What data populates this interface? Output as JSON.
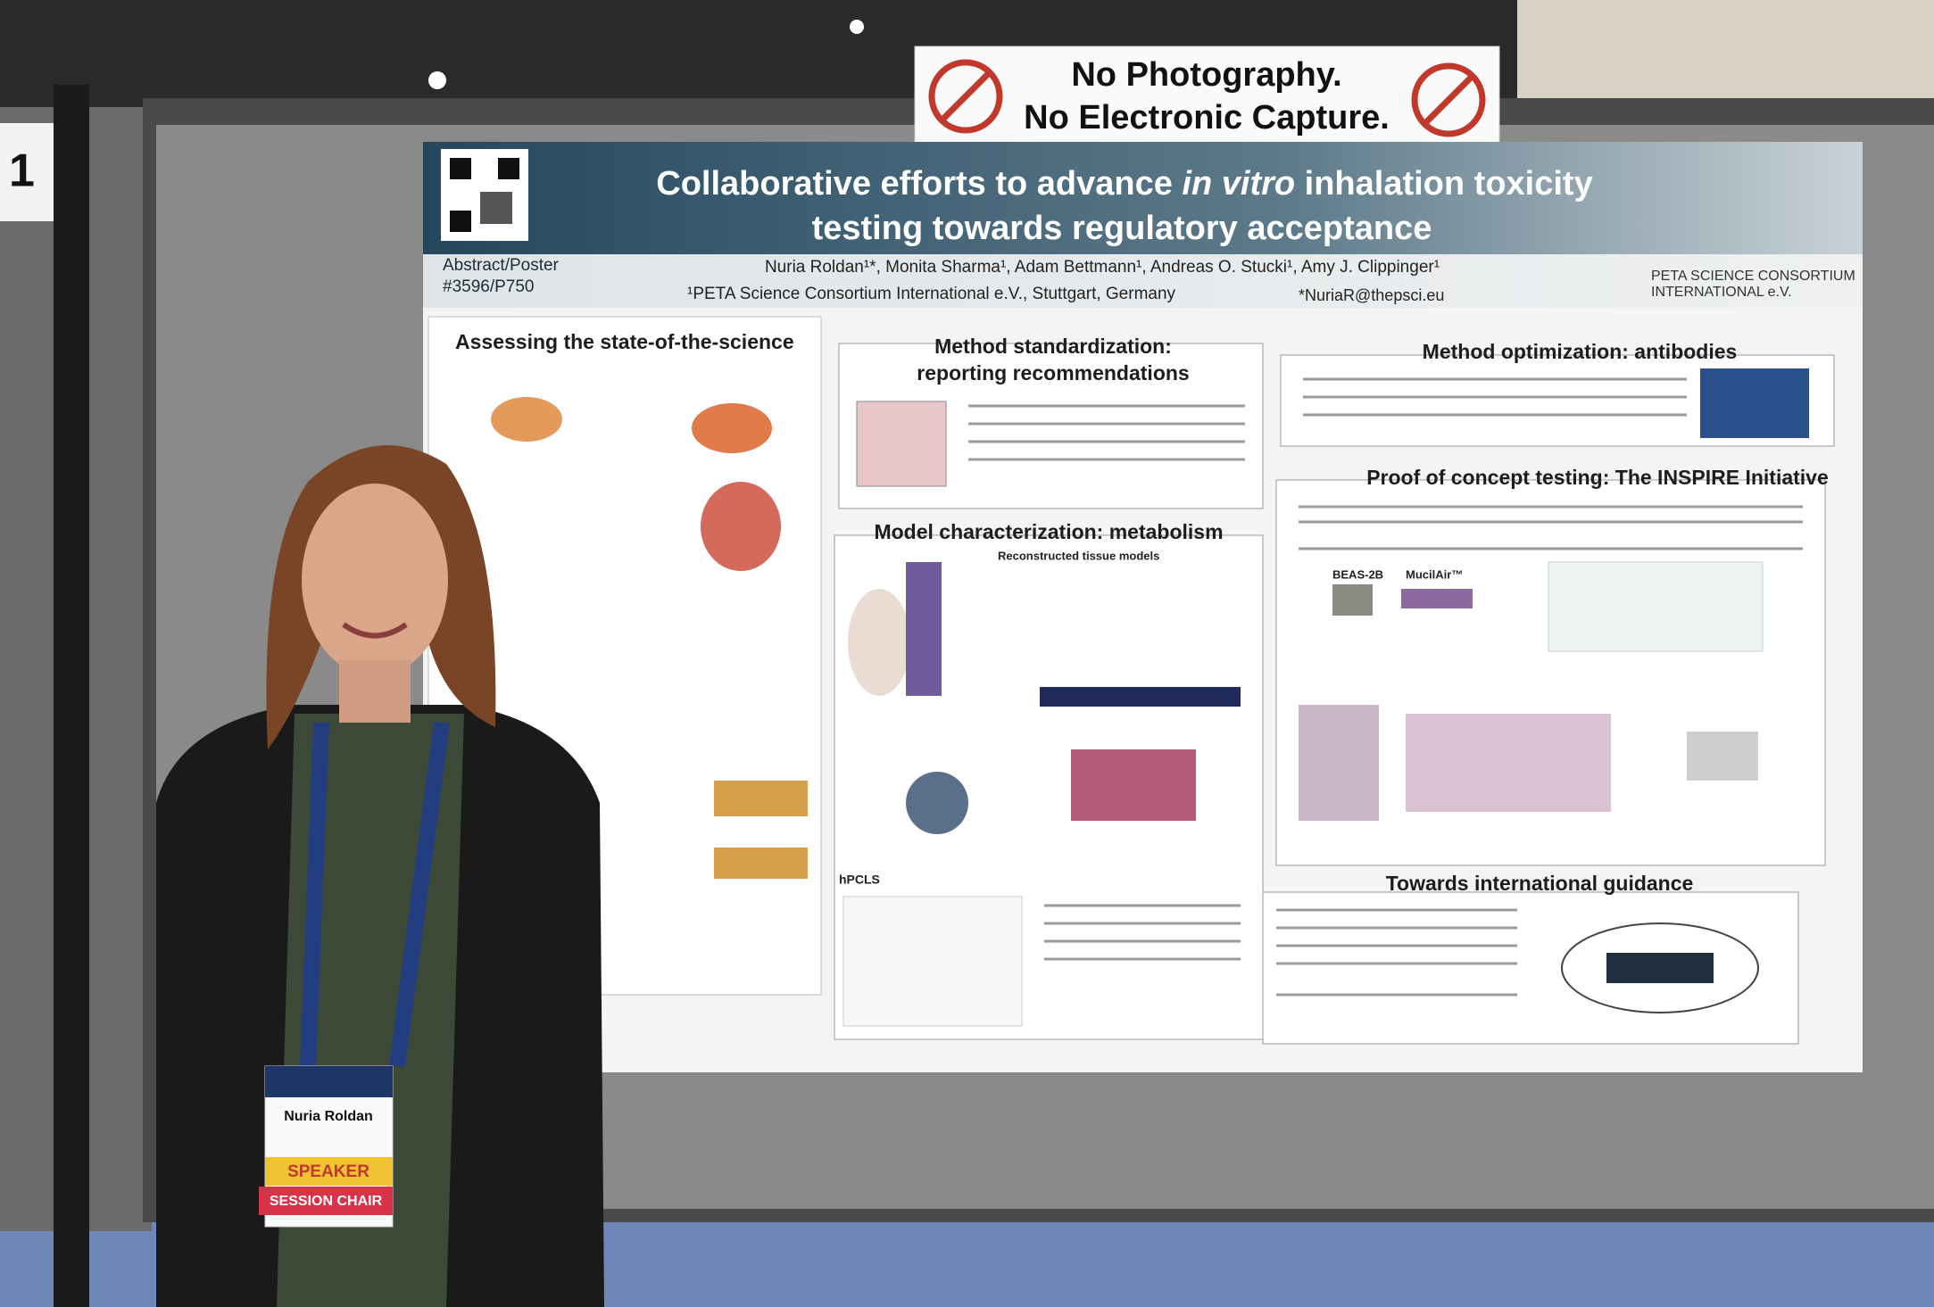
{
  "booth_number": "1",
  "sign": {
    "line1": "No Photography.",
    "line2": "No Electronic Capture."
  },
  "poster": {
    "title_line1_start": "Collaborative efforts to advance ",
    "title_line1_italic": "in vitro",
    "title_line1_end": " inhalation toxicity",
    "title_line2": "testing towards regulatory acceptance",
    "abstract_label": "Abstract/Poster",
    "abstract_number": "#3596/P750",
    "authors": "Nuria Roldan¹*, Monita Sharma¹, Adam Bettmann¹, Andreas O. Stucki¹, Amy J. Clippinger¹",
    "affiliation": "¹PETA Science Consortium International e.V., Stuttgart, Germany",
    "email": "*NuriaR@thepsci.eu",
    "logo_line1": "PETA SCIENCE CONSORTIUM",
    "logo_line2": "INTERNATIONAL e.V.",
    "sections": {
      "assessing": "Assessing the state-of-the-science",
      "standardization_line1": "Method standardization:",
      "standardization_line2": "reporting recommendations",
      "metabolism": "Model characterization: metabolism",
      "reconstructed": "Reconstructed tissue models",
      "hpcls": "hPCLS",
      "antibodies": "Method optimization: antibodies",
      "inspire": "Proof of concept testing: The INSPIRE Initiative",
      "beas": "BEAS-2B",
      "mucilair": "MucilAir™",
      "guidance": "Towards international guidance"
    }
  },
  "badge": {
    "name": "Nuria Roldan",
    "role": "SPEAKER",
    "role2": "SESSION CHAIR"
  }
}
